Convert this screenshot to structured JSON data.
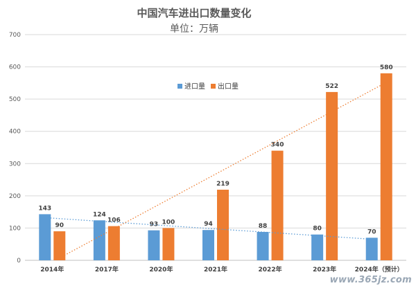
{
  "chart_data": {
    "type": "bar",
    "title": "中国汽车进出口数量变化",
    "subtitle": "单位：万辆",
    "categories": [
      "2014年",
      "2017年",
      "2020年",
      "2021年",
      "2022年",
      "2023年",
      "2024年（预计）"
    ],
    "series": [
      {
        "name": "进口量",
        "values": [
          143,
          124,
          93,
          94,
          88,
          80,
          70
        ],
        "color": "#5b9bd5"
      },
      {
        "name": "出口量",
        "values": [
          90,
          106,
          100,
          219,
          340,
          522,
          580
        ],
        "color": "#ed7d31"
      }
    ],
    "trendlines": [
      {
        "series": "进口量",
        "type": "linear",
        "style": "dotted"
      },
      {
        "series": "出口量",
        "type": "linear",
        "style": "dotted"
      }
    ],
    "ylim": [
      0,
      700
    ],
    "yticks": [
      0,
      100,
      200,
      300,
      400,
      500,
      600,
      700
    ],
    "legend": "top-center",
    "grid": true,
    "xlabel": "",
    "ylabel": ""
  },
  "watermark": "www.365jz.com"
}
